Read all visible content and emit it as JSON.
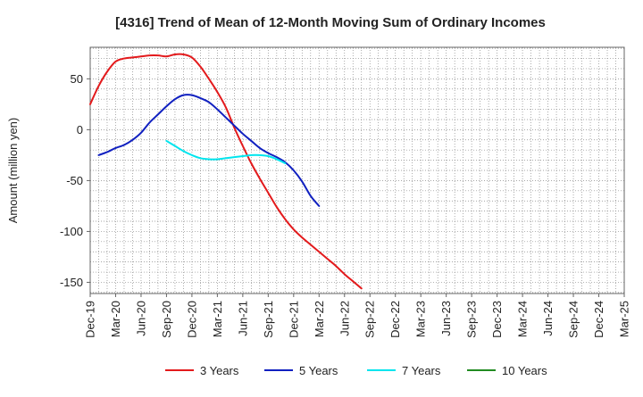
{
  "chart_data": {
    "type": "line",
    "title": "[4316]  Trend of Mean of 12-Month Moving Sum of Ordinary Incomes",
    "ylabel": "Amount (million yen)",
    "xlabel": "",
    "x_tick_labels": [
      "Dec-19",
      "Mar-20",
      "Jun-20",
      "Sep-20",
      "Dec-20",
      "Mar-21",
      "Jun-21",
      "Sep-21",
      "Dec-21",
      "Mar-22",
      "Jun-22",
      "Sep-22",
      "Dec-22",
      "Mar-23",
      "Jun-23",
      "Sep-23",
      "Dec-23",
      "Mar-24",
      "Jun-24",
      "Sep-24",
      "Dec-24",
      "Mar-25"
    ],
    "y_ticks": [
      50,
      0,
      -50,
      -100,
      -150
    ],
    "y_tick_labels": [
      "50",
      "0",
      "-50",
      "-100",
      "-150"
    ],
    "ylim": [
      -161,
      81
    ],
    "grid": true,
    "legend_position": "bottom",
    "series": [
      {
        "name": "3 Years",
        "color": "#e31a1c",
        "points": [
          [
            0,
            25
          ],
          [
            1,
            43
          ],
          [
            2,
            57
          ],
          [
            3,
            67
          ],
          [
            4,
            70
          ],
          [
            5,
            71
          ],
          [
            6,
            72
          ],
          [
            7,
            73
          ],
          [
            8,
            73
          ],
          [
            9,
            72
          ],
          [
            10,
            74
          ],
          [
            11,
            74
          ],
          [
            12,
            71
          ],
          [
            13,
            62
          ],
          [
            14,
            50
          ],
          [
            15,
            37
          ],
          [
            16,
            22
          ],
          [
            17,
            2
          ],
          [
            18,
            -16
          ],
          [
            19,
            -33
          ],
          [
            20,
            -48
          ],
          [
            21,
            -62
          ],
          [
            22,
            -76
          ],
          [
            23,
            -88
          ],
          [
            24,
            -98
          ],
          [
            25,
            -106
          ],
          [
            26,
            -113
          ],
          [
            27,
            -120
          ],
          [
            28,
            -127
          ],
          [
            29,
            -134
          ],
          [
            30,
            -142
          ],
          [
            31,
            -149
          ],
          [
            32,
            -156
          ]
        ]
      },
      {
        "name": "5 Years",
        "color": "#1020c0",
        "points": [
          [
            1,
            -25
          ],
          [
            2,
            -22
          ],
          [
            3,
            -18
          ],
          [
            4,
            -15
          ],
          [
            5,
            -10
          ],
          [
            6,
            -3
          ],
          [
            7,
            7
          ],
          [
            8,
            15
          ],
          [
            9,
            23
          ],
          [
            10,
            30
          ],
          [
            11,
            34
          ],
          [
            12,
            34
          ],
          [
            13,
            31
          ],
          [
            14,
            27
          ],
          [
            15,
            20
          ],
          [
            16,
            12
          ],
          [
            17,
            4
          ],
          [
            18,
            -4
          ],
          [
            19,
            -11
          ],
          [
            20,
            -18
          ],
          [
            21,
            -23
          ],
          [
            22,
            -27
          ],
          [
            23,
            -32
          ],
          [
            24,
            -40
          ],
          [
            25,
            -51
          ],
          [
            26,
            -65
          ],
          [
            27,
            -75
          ]
        ]
      },
      {
        "name": "7 Years",
        "color": "#00e5ee",
        "points": [
          [
            9,
            -11
          ],
          [
            10,
            -16
          ],
          [
            11,
            -21
          ],
          [
            12,
            -25
          ],
          [
            13,
            -28
          ],
          [
            14,
            -29
          ],
          [
            15,
            -29
          ],
          [
            16,
            -28
          ],
          [
            17,
            -27
          ],
          [
            18,
            -26
          ],
          [
            19,
            -25
          ],
          [
            20,
            -25
          ],
          [
            21,
            -26
          ],
          [
            22,
            -29
          ],
          [
            23,
            -33
          ]
        ]
      },
      {
        "name": "10 Years",
        "color": "#228b22",
        "points": []
      }
    ]
  }
}
